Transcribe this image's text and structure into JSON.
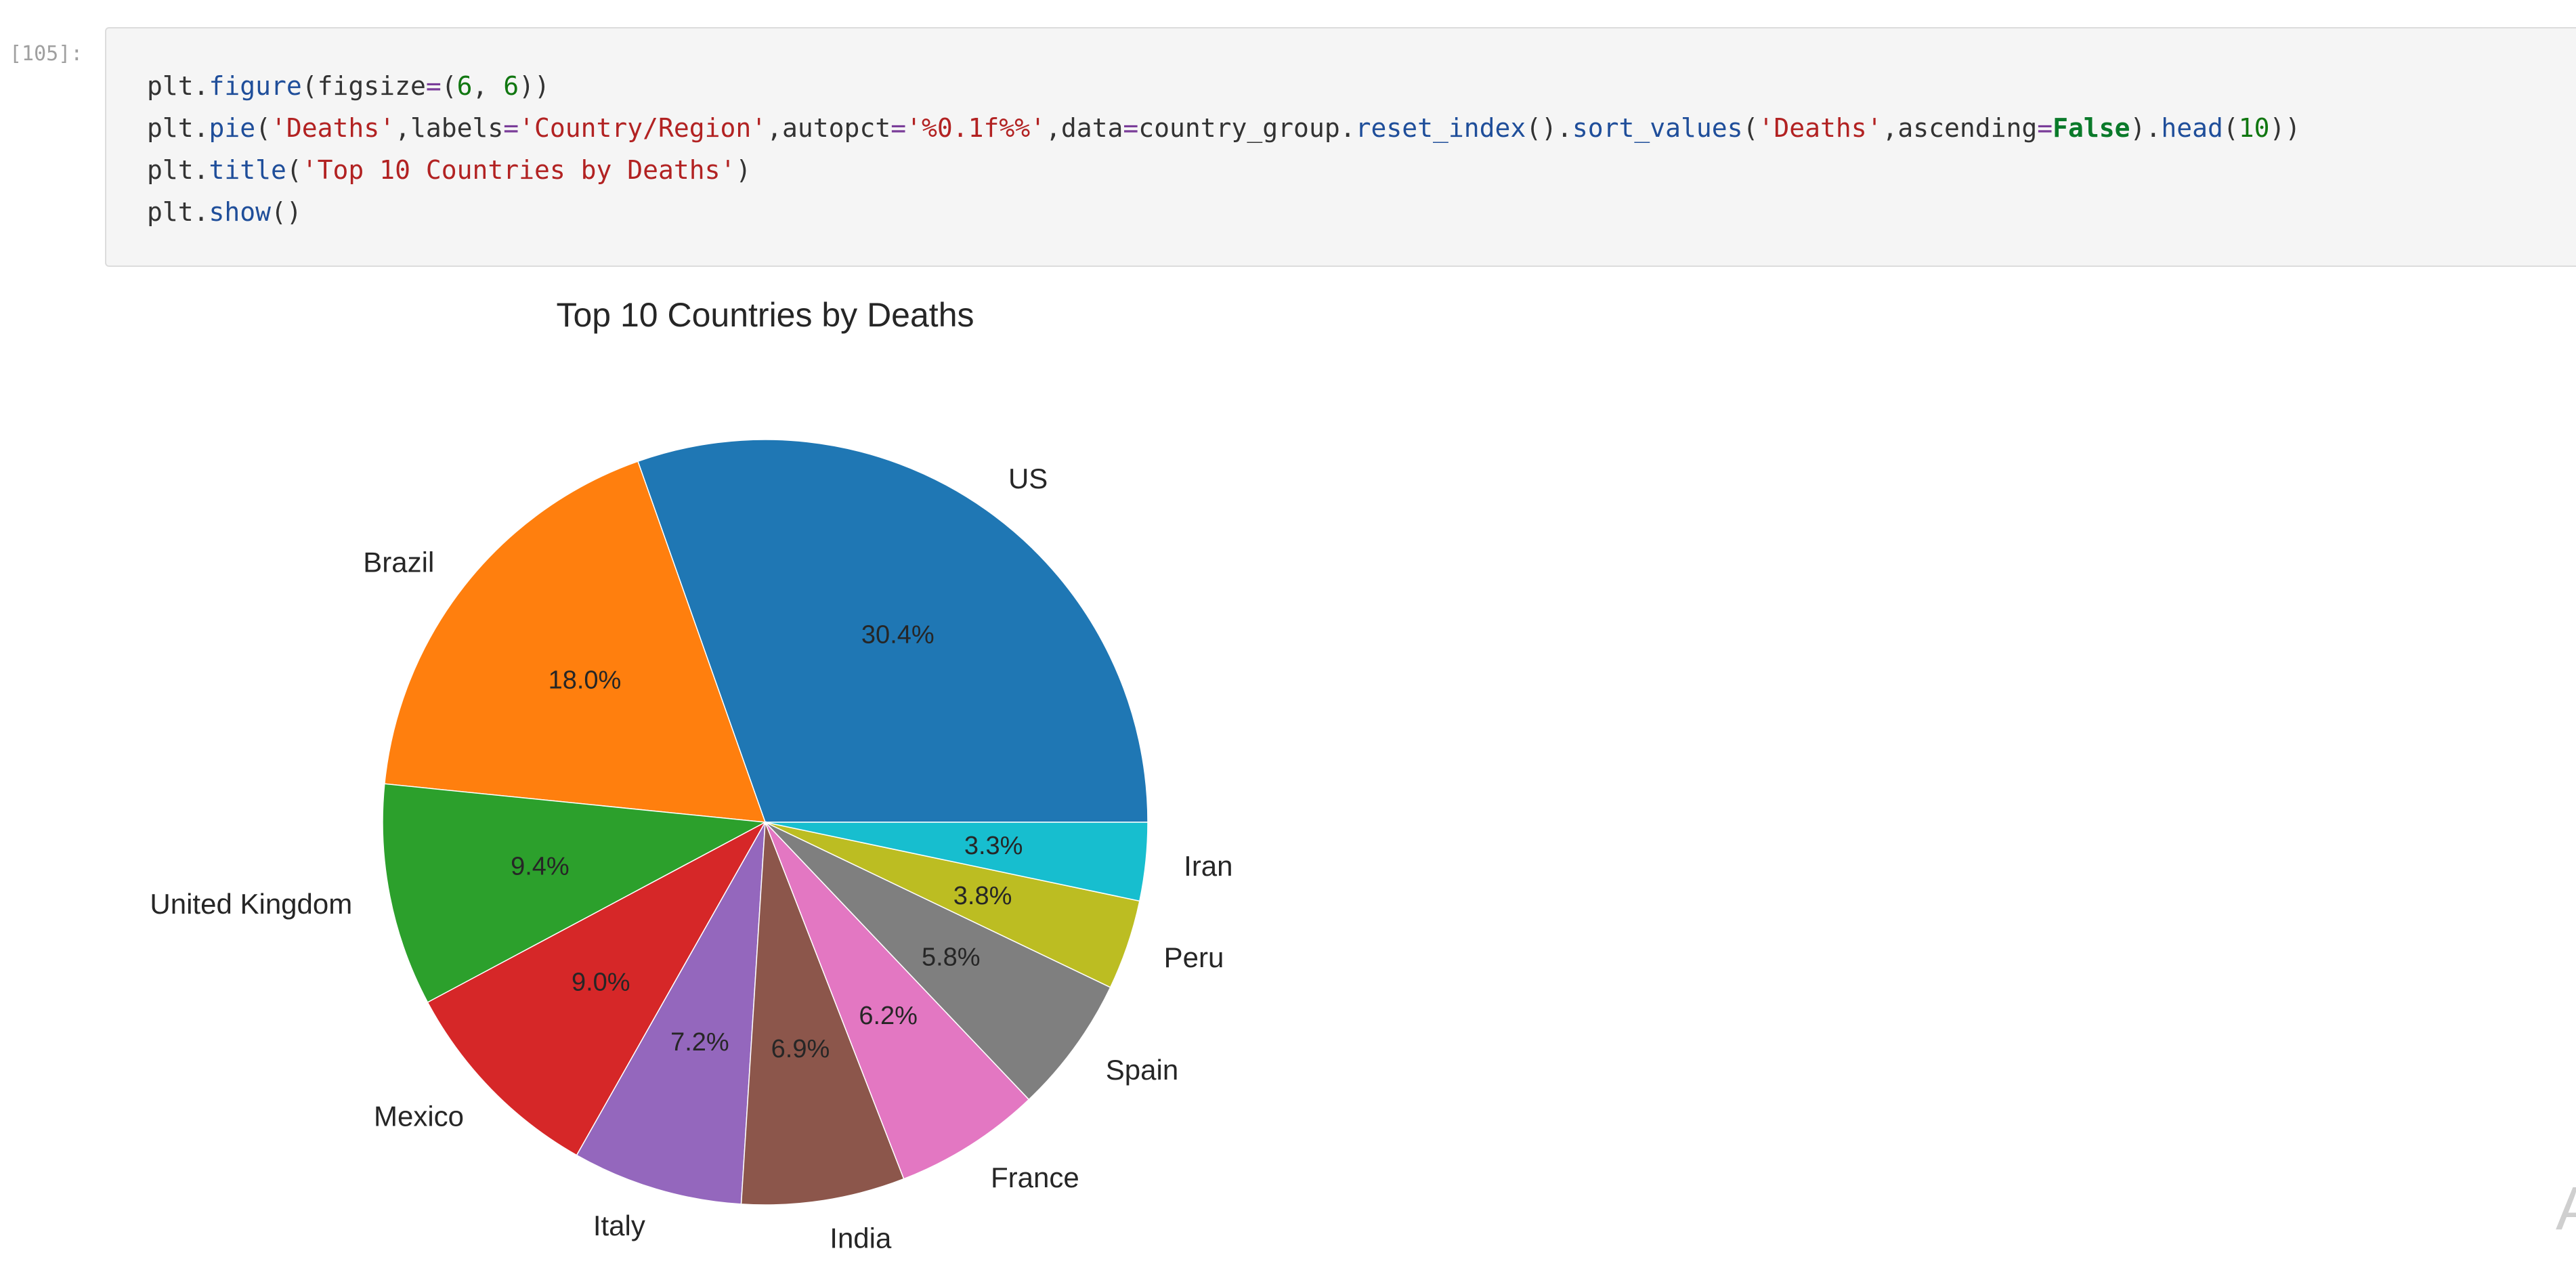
{
  "cell": {
    "prompt": "[105]:",
    "code_lines": [
      [
        {
          "t": "plt.",
          "c": ""
        },
        {
          "t": "figure",
          "c": "fn"
        },
        {
          "t": "(figsize",
          "c": ""
        },
        {
          "t": "=",
          "c": "op"
        },
        {
          "t": "(",
          "c": ""
        },
        {
          "t": "6",
          "c": "num"
        },
        {
          "t": ", ",
          "c": ""
        },
        {
          "t": "6",
          "c": "num"
        },
        {
          "t": "))",
          "c": ""
        }
      ],
      [
        {
          "t": "plt.",
          "c": ""
        },
        {
          "t": "pie",
          "c": "fn"
        },
        {
          "t": "(",
          "c": ""
        },
        {
          "t": "'Deaths'",
          "c": "str"
        },
        {
          "t": ",labels",
          "c": ""
        },
        {
          "t": "=",
          "c": "op"
        },
        {
          "t": "'Country/Region'",
          "c": "str"
        },
        {
          "t": ",autopct",
          "c": ""
        },
        {
          "t": "=",
          "c": "op"
        },
        {
          "t": "'%0.1f%%'",
          "c": "str"
        },
        {
          "t": ",data",
          "c": ""
        },
        {
          "t": "=",
          "c": "op"
        },
        {
          "t": "country_group.",
          "c": ""
        },
        {
          "t": "reset_index",
          "c": "fn"
        },
        {
          "t": "().",
          "c": ""
        },
        {
          "t": "sort_values",
          "c": "fn"
        },
        {
          "t": "(",
          "c": ""
        },
        {
          "t": "'Deaths'",
          "c": "str"
        },
        {
          "t": ",ascending",
          "c": ""
        },
        {
          "t": "=",
          "c": "op"
        },
        {
          "t": "False",
          "c": "kw"
        },
        {
          "t": ").",
          "c": ""
        },
        {
          "t": "head",
          "c": "fn"
        },
        {
          "t": "(",
          "c": ""
        },
        {
          "t": "10",
          "c": "num"
        },
        {
          "t": "))",
          "c": ""
        }
      ],
      [
        {
          "t": "plt.",
          "c": ""
        },
        {
          "t": "title",
          "c": "fn"
        },
        {
          "t": "(",
          "c": ""
        },
        {
          "t": "'Top 10 Countries by Deaths'",
          "c": "str"
        },
        {
          "t": ")",
          "c": ""
        }
      ],
      [
        {
          "t": "plt.",
          "c": ""
        },
        {
          "t": "show",
          "c": "fn"
        },
        {
          "t": "()",
          "c": ""
        }
      ]
    ]
  },
  "chart_data": {
    "type": "pie",
    "title": "Top 10 Countries by Deaths",
    "categories": [
      "US",
      "Brazil",
      "United Kingdom",
      "Mexico",
      "Italy",
      "India",
      "France",
      "Spain",
      "Peru",
      "Iran"
    ],
    "values": [
      30.4,
      18.0,
      9.4,
      9.0,
      7.2,
      6.9,
      6.2,
      5.8,
      3.8,
      3.3
    ],
    "pct_labels": [
      "30.4%",
      "18.0%",
      "9.4%",
      "9.0%",
      "7.2%",
      "6.9%",
      "6.2%",
      "5.8%",
      "3.8%",
      "3.3%"
    ],
    "colors": [
      "#1f77b4",
      "#ff7f0e",
      "#2ca02c",
      "#d62728",
      "#9467bd",
      "#8c564b",
      "#e377c2",
      "#7f7f7f",
      "#bcbd22",
      "#17becf"
    ],
    "start_angle_deg": 0,
    "direction": "counterclockwise",
    "legend": "none"
  }
}
